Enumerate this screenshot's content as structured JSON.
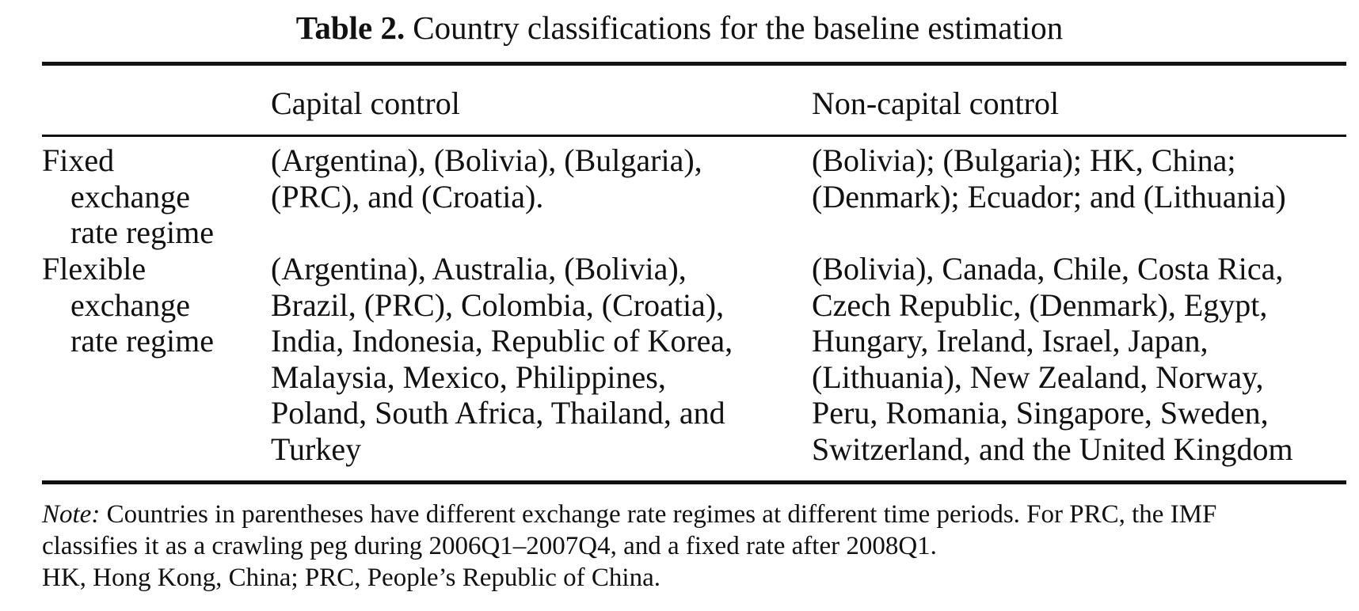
{
  "caption": {
    "label": "Table 2.",
    "title": "Country classifications for the baseline estimation"
  },
  "table": {
    "columns": [
      "",
      "Capital control",
      "Non-capital control"
    ],
    "rows": [
      {
        "stub_lines": [
          "Fixed",
          "exchange",
          "rate regime"
        ],
        "capital_control_lines": [
          "(Argentina), (Bolivia), (Bulgaria),",
          "(PRC), and (Croatia)."
        ],
        "non_capital_control_lines": [
          "(Bolivia); (Bulgaria); HK, China;",
          "(Denmark); Ecuador; and (Lithuania)"
        ]
      },
      {
        "stub_lines": [
          "Flexible",
          "exchange",
          "rate regime"
        ],
        "capital_control_lines": [
          "(Argentina), Australia, (Bolivia),",
          "Brazil, (PRC), Colombia, (Croatia),",
          "India, Indonesia, Republic of Korea,",
          "Malaysia, Mexico, Philippines,",
          "Poland, South Africa, Thailand, and",
          "Turkey"
        ],
        "non_capital_control_lines": [
          "(Bolivia), Canada, Chile, Costa Rica,",
          "Czech Republic, (Denmark), Egypt,",
          "Hungary, Ireland, Israel, Japan,",
          "(Lithuania), New Zealand, Norway,",
          "Peru, Romania, Singapore, Sweden,",
          "Switzerland, and the United Kingdom"
        ]
      }
    ]
  },
  "notes": {
    "note_label": "Note:",
    "note_line1": "Countries in parentheses have different exchange rate regimes at different time periods. For PRC, the IMF",
    "note_line2": "classifies it as a crawling peg during 2006Q1–2007Q4, and a fixed rate after 2008Q1.",
    "abbrev_line": "HK, Hong Kong, China; PRC, People’s Republic of China."
  }
}
